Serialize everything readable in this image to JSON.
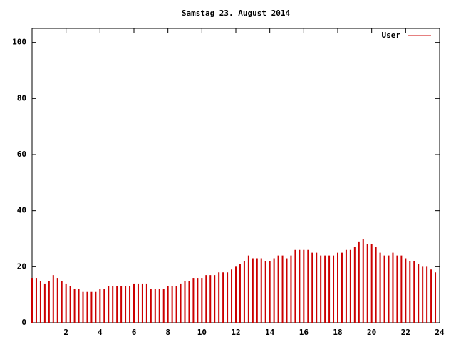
{
  "chart_data": {
    "type": "impulse",
    "title": "Samstag 23. August 2014",
    "x": [
      0,
      0.25,
      0.5,
      0.75,
      1,
      1.25,
      1.5,
      1.75,
      2,
      2.25,
      2.5,
      2.75,
      3,
      3.25,
      3.5,
      3.75,
      4,
      4.25,
      4.5,
      4.75,
      5,
      5.25,
      5.5,
      5.75,
      6,
      6.25,
      6.5,
      6.75,
      7,
      7.25,
      7.5,
      7.75,
      8,
      8.25,
      8.5,
      8.75,
      9,
      9.25,
      9.5,
      9.75,
      10,
      10.25,
      10.5,
      10.75,
      11,
      11.25,
      11.5,
      11.75,
      12,
      12.25,
      12.5,
      12.75,
      13,
      13.25,
      13.5,
      13.75,
      14,
      14.25,
      14.5,
      14.75,
      15,
      15.25,
      15.5,
      15.75,
      16,
      16.25,
      16.5,
      16.75,
      17,
      17.25,
      17.5,
      17.75,
      18,
      18.25,
      18.5,
      18.75,
      19,
      19.25,
      19.5,
      19.75,
      20,
      20.25,
      20.5,
      20.75,
      21,
      21.25,
      21.5,
      21.75,
      22,
      22.25,
      22.5,
      22.75,
      23,
      23.25,
      23.5,
      23.75
    ],
    "series": [
      {
        "name": "User",
        "color": "#cc0000",
        "values": [
          16,
          16,
          15,
          14,
          15,
          17,
          16,
          15,
          14,
          13,
          12,
          12,
          11,
          11,
          11,
          11,
          12,
          12,
          13,
          13,
          13,
          13,
          13,
          13,
          14,
          14,
          14,
          14,
          12,
          12,
          12,
          12,
          13,
          13,
          13,
          14,
          15,
          15,
          16,
          16,
          16,
          17,
          17,
          17,
          18,
          18,
          18,
          19,
          20,
          21,
          22,
          24,
          23,
          23,
          23,
          22,
          22,
          23,
          24,
          24,
          23,
          24,
          26,
          26,
          26,
          26,
          25,
          25,
          24,
          24,
          24,
          24,
          25,
          25,
          26,
          26,
          27,
          29,
          30,
          28,
          28,
          27,
          25,
          24,
          24,
          25,
          24,
          24,
          23,
          22,
          22,
          21,
          20,
          20,
          19,
          18
        ]
      }
    ],
    "xlim": [
      0,
      24
    ],
    "xticks": [
      2,
      4,
      6,
      8,
      10,
      12,
      14,
      16,
      18,
      20,
      22,
      24
    ],
    "ylim": [
      0,
      105
    ],
    "yticks": [
      0,
      20,
      40,
      60,
      80,
      100
    ],
    "legend": "top-right"
  }
}
